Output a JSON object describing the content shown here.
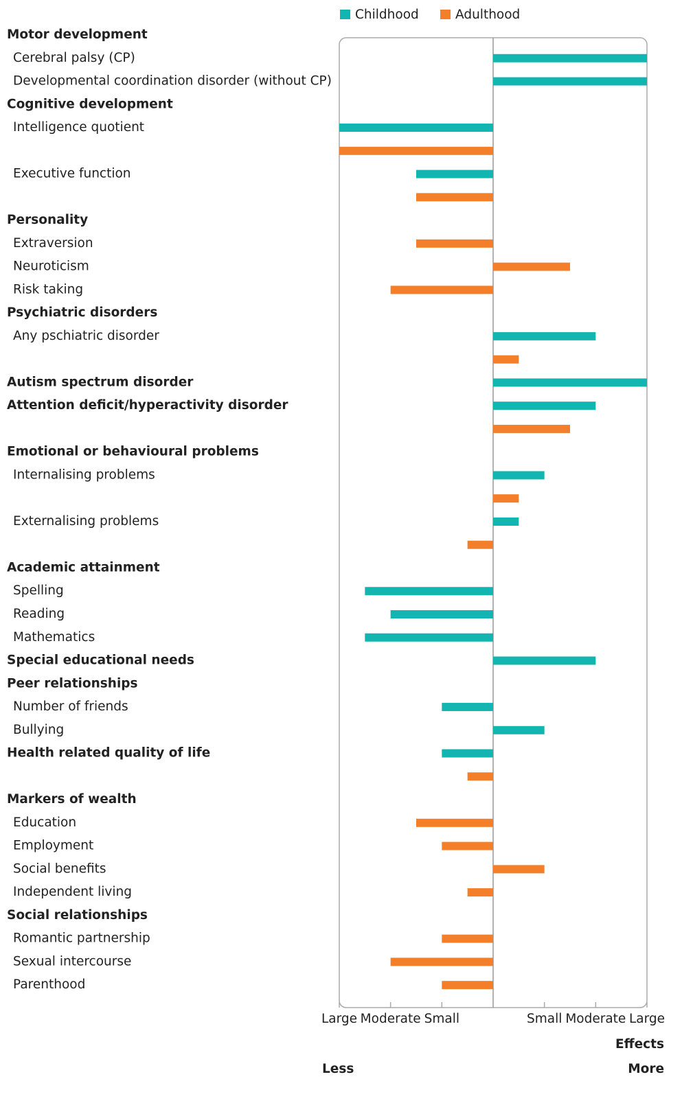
{
  "chart_data": {
    "type": "bar",
    "orientation": "horizontal",
    "categories": [
      "Motor development",
      "Cerebral palsy (CP)",
      "Developmental coordination disorder (without CP)",
      "Cognitive development",
      "Intelligence quotient",
      null,
      "Executive function",
      null,
      "Personality",
      "Extraversion",
      "Neuroticism",
      "Risk taking",
      "Psychiatric disorders",
      "Any pschiatric disorder",
      null,
      "Autism spectrum disorder",
      "Attention deficit/hyperactivity disorder",
      null,
      "Emotional or behavioural problems",
      "Internalising problems",
      null,
      "Externalising problems",
      null,
      "Academic attainment",
      "Spelling",
      "Reading",
      "Mathematics",
      "Special educational needs",
      "Peer relationships",
      "Number of friends",
      "Bullying",
      "Health related quality of life",
      null,
      "Markers of wealth",
      "Education",
      "Employment",
      "Social benefits",
      "Independent living",
      "Social relationships",
      "Romantic partnership",
      "Sexual intercourse",
      "Parenthood"
    ],
    "bold": [
      true,
      false,
      false,
      true,
      false,
      false,
      false,
      false,
      true,
      false,
      false,
      false,
      true,
      false,
      false,
      true,
      true,
      false,
      true,
      false,
      false,
      false,
      false,
      true,
      false,
      false,
      false,
      true,
      true,
      false,
      false,
      true,
      false,
      true,
      false,
      false,
      false,
      false,
      true,
      false,
      false,
      false
    ],
    "series": [
      {
        "name": "Childhood",
        "color": "#12b5b0",
        "values": [
          null,
          3,
          3,
          null,
          -3,
          null,
          -1.5,
          null,
          null,
          null,
          null,
          null,
          null,
          2,
          null,
          3,
          2,
          null,
          null,
          1,
          null,
          0.5,
          null,
          null,
          -2.5,
          -2,
          -2.5,
          2,
          null,
          -1,
          1,
          -1,
          null,
          null,
          null,
          null,
          null,
          null,
          null,
          null,
          null,
          null
        ]
      },
      {
        "name": "Adulthood",
        "color": "#f47f2a",
        "values": [
          null,
          null,
          null,
          null,
          null,
          -3,
          null,
          -1.5,
          null,
          -1.5,
          1.5,
          -2,
          null,
          null,
          0.5,
          null,
          null,
          1.5,
          null,
          null,
          0.5,
          null,
          -0.5,
          null,
          null,
          null,
          null,
          null,
          null,
          null,
          null,
          null,
          -0.5,
          null,
          -1.5,
          -1,
          1,
          -0.5,
          null,
          -1,
          -2,
          -1
        ]
      }
    ],
    "xlim": [
      -3,
      3
    ],
    "xticks": [
      {
        "value": -3,
        "label": "Large"
      },
      {
        "value": -2,
        "label": "Moderate"
      },
      {
        "value": -1,
        "label": "Small"
      },
      {
        "value": 1,
        "label": "Small"
      },
      {
        "value": 2,
        "label": "Moderate"
      },
      {
        "value": 3,
        "label": "Large"
      }
    ],
    "x_label": "Effects",
    "x_left_label": "Less",
    "x_right_label": "More",
    "legend": "top"
  }
}
